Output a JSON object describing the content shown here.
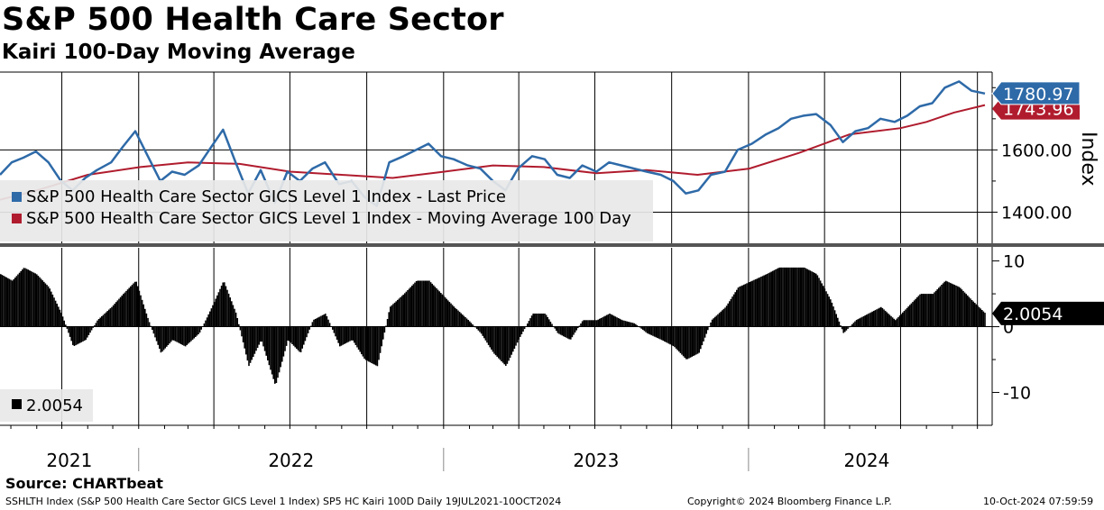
{
  "title": "S&P 500 Health Care Sector",
  "subtitle": "Kairi 100-Day Moving Average",
  "source": "Source: CHARTbeat",
  "footer": {
    "left": "SSHLTH Index (S&P 500 Health Care Sector GICS Level 1 Index) SP5 HC Kairi 100D  Daily 19JUL2021-10OCT2024",
    "center": "Copyright© 2024 Bloomberg Finance L.P.",
    "right": "10-Oct-2024 07:59:59"
  },
  "colors": {
    "price": "#2e6aa8",
    "ma": "#b01c2e",
    "kairi": "#000000",
    "grid": "#000000"
  },
  "chart_data": [
    {
      "type": "line",
      "y_axis_title": "Index",
      "y_ticks": [
        1400,
        1600
      ],
      "y_tick_labels": [
        "1400.00",
        "1600.00"
      ],
      "ylim": [
        1300,
        1850
      ],
      "x_labels": [
        "2021",
        "2022",
        "2023",
        "2024"
      ],
      "x_range": [
        "2021-07-19",
        "2024-10-10"
      ],
      "legend_position": "bottom-left",
      "last_price_label": "1780.97",
      "ma_label_partial": "1743.96",
      "series": [
        {
          "name": "S&P 500 Health Care Sector GICS Level 1 Index - Last Price",
          "color": "#2e6aa8",
          "points": [
            [
              "2021-07-19",
              1520
            ],
            [
              "2021-08-02",
              1560
            ],
            [
              "2021-08-16",
              1575
            ],
            [
              "2021-08-31",
              1595
            ],
            [
              "2021-09-15",
              1560
            ],
            [
              "2021-09-30",
              1500
            ],
            [
              "2021-10-14",
              1470
            ],
            [
              "2021-10-29",
              1510
            ],
            [
              "2021-11-12",
              1535
            ],
            [
              "2021-11-29",
              1560
            ],
            [
              "2021-12-13",
              1610
            ],
            [
              "2021-12-28",
              1660
            ],
            [
              "2022-01-12",
              1580
            ],
            [
              "2022-01-27",
              1500
            ],
            [
              "2022-02-10",
              1530
            ],
            [
              "2022-02-25",
              1520
            ],
            [
              "2022-03-14",
              1550
            ],
            [
              "2022-03-29",
              1610
            ],
            [
              "2022-04-12",
              1665
            ],
            [
              "2022-04-27",
              1560
            ],
            [
              "2022-05-12",
              1460
            ],
            [
              "2022-05-27",
              1535
            ],
            [
              "2022-06-13",
              1430
            ],
            [
              "2022-06-28",
              1530
            ],
            [
              "2022-07-13",
              1500
            ],
            [
              "2022-07-28",
              1540
            ],
            [
              "2022-08-12",
              1560
            ],
            [
              "2022-08-29",
              1490
            ],
            [
              "2022-09-13",
              1500
            ],
            [
              "2022-09-28",
              1450
            ],
            [
              "2022-10-13",
              1420
            ],
            [
              "2022-10-28",
              1560
            ],
            [
              "2022-11-14",
              1580
            ],
            [
              "2022-11-29",
              1600
            ],
            [
              "2022-12-14",
              1620
            ],
            [
              "2022-12-29",
              1580
            ],
            [
              "2023-01-13",
              1570
            ],
            [
              "2023-01-30",
              1550
            ],
            [
              "2023-02-14",
              1540
            ],
            [
              "2023-03-01",
              1500
            ],
            [
              "2023-03-16",
              1470
            ],
            [
              "2023-03-31",
              1540
            ],
            [
              "2023-04-17",
              1580
            ],
            [
              "2023-05-02",
              1570
            ],
            [
              "2023-05-17",
              1520
            ],
            [
              "2023-06-01",
              1510
            ],
            [
              "2023-06-16",
              1550
            ],
            [
              "2023-07-03",
              1530
            ],
            [
              "2023-07-18",
              1560
            ],
            [
              "2023-08-02",
              1550
            ],
            [
              "2023-08-17",
              1540
            ],
            [
              "2023-09-01",
              1530
            ],
            [
              "2023-09-18",
              1520
            ],
            [
              "2023-10-03",
              1500
            ],
            [
              "2023-10-18",
              1460
            ],
            [
              "2023-11-02",
              1470
            ],
            [
              "2023-11-17",
              1520
            ],
            [
              "2023-12-04",
              1530
            ],
            [
              "2023-12-19",
              1600
            ],
            [
              "2024-01-05",
              1620
            ],
            [
              "2024-01-22",
              1650
            ],
            [
              "2024-02-06",
              1670
            ],
            [
              "2024-02-21",
              1700
            ],
            [
              "2024-03-07",
              1710
            ],
            [
              "2024-03-22",
              1715
            ],
            [
              "2024-04-08",
              1680
            ],
            [
              "2024-04-23",
              1625
            ],
            [
              "2024-05-08",
              1660
            ],
            [
              "2024-05-23",
              1670
            ],
            [
              "2024-06-07",
              1700
            ],
            [
              "2024-06-24",
              1690
            ],
            [
              "2024-07-09",
              1710
            ],
            [
              "2024-07-24",
              1740
            ],
            [
              "2024-08-08",
              1750
            ],
            [
              "2024-08-23",
              1800
            ],
            [
              "2024-09-09",
              1820
            ],
            [
              "2024-09-24",
              1790
            ],
            [
              "2024-10-10",
              1781
            ]
          ]
        },
        {
          "name": "S&P 500 Health Care Sector GICS Level 1 Index - Moving Average 100 Day",
          "color": "#b01c2e",
          "points": [
            [
              "2021-07-19",
              1440
            ],
            [
              "2021-09-01",
              1470
            ],
            [
              "2021-11-01",
              1520
            ],
            [
              "2022-01-03",
              1545
            ],
            [
              "2022-03-01",
              1560
            ],
            [
              "2022-05-02",
              1555
            ],
            [
              "2022-07-01",
              1530
            ],
            [
              "2022-09-01",
              1520
            ],
            [
              "2022-11-01",
              1510
            ],
            [
              "2023-01-02",
              1530
            ],
            [
              "2023-03-01",
              1550
            ],
            [
              "2023-05-01",
              1545
            ],
            [
              "2023-07-03",
              1525
            ],
            [
              "2023-09-01",
              1535
            ],
            [
              "2023-11-01",
              1520
            ],
            [
              "2024-01-02",
              1540
            ],
            [
              "2024-03-01",
              1590
            ],
            [
              "2024-05-01",
              1650
            ],
            [
              "2024-07-01",
              1670
            ],
            [
              "2024-08-01",
              1690
            ],
            [
              "2024-09-03",
              1720
            ],
            [
              "2024-10-10",
              1744
            ]
          ]
        }
      ]
    },
    {
      "type": "bar",
      "ylim": [
        -15,
        12
      ],
      "y_ticks": [
        10,
        0,
        -10
      ],
      "y_tick_labels": [
        "10",
        "0",
        "-10"
      ],
      "legend_position": "bottom-left",
      "last_value_label": "2.0054",
      "series": [
        {
          "name": "2.0054",
          "color": "#000000",
          "points": [
            [
              "2021-07-19",
              8
            ],
            [
              "2021-08-02",
              7
            ],
            [
              "2021-08-16",
              9
            ],
            [
              "2021-08-31",
              8
            ],
            [
              "2021-09-15",
              6
            ],
            [
              "2021-09-30",
              2
            ],
            [
              "2021-10-14",
              -3
            ],
            [
              "2021-10-29",
              -2
            ],
            [
              "2021-11-12",
              1
            ],
            [
              "2021-11-29",
              3
            ],
            [
              "2021-12-13",
              5
            ],
            [
              "2021-12-28",
              7
            ],
            [
              "2022-01-12",
              1
            ],
            [
              "2022-01-27",
              -4
            ],
            [
              "2022-02-10",
              -2
            ],
            [
              "2022-02-25",
              -3
            ],
            [
              "2022-03-14",
              -1
            ],
            [
              "2022-03-29",
              3
            ],
            [
              "2022-04-12",
              7
            ],
            [
              "2022-04-27",
              2
            ],
            [
              "2022-05-12",
              -6
            ],
            [
              "2022-05-27",
              -2
            ],
            [
              "2022-06-13",
              -9
            ],
            [
              "2022-06-28",
              -2
            ],
            [
              "2022-07-13",
              -4
            ],
            [
              "2022-07-28",
              1
            ],
            [
              "2022-08-12",
              2
            ],
            [
              "2022-08-29",
              -3
            ],
            [
              "2022-09-13",
              -2
            ],
            [
              "2022-09-28",
              -5
            ],
            [
              "2022-10-13",
              -6
            ],
            [
              "2022-10-28",
              3
            ],
            [
              "2022-11-14",
              5
            ],
            [
              "2022-11-29",
              7
            ],
            [
              "2022-12-14",
              7
            ],
            [
              "2022-12-29",
              5
            ],
            [
              "2023-01-13",
              3
            ],
            [
              "2023-01-30",
              1
            ],
            [
              "2023-02-14",
              -1
            ],
            [
              "2023-03-01",
              -4
            ],
            [
              "2023-03-16",
              -6
            ],
            [
              "2023-03-31",
              -2
            ],
            [
              "2023-04-17",
              2
            ],
            [
              "2023-05-02",
              2
            ],
            [
              "2023-05-17",
              -1
            ],
            [
              "2023-06-01",
              -2
            ],
            [
              "2023-06-16",
              1
            ],
            [
              "2023-07-03",
              1
            ],
            [
              "2023-07-18",
              2
            ],
            [
              "2023-08-02",
              1
            ],
            [
              "2023-08-17",
              0.5
            ],
            [
              "2023-09-01",
              -1
            ],
            [
              "2023-09-18",
              -2
            ],
            [
              "2023-10-03",
              -3
            ],
            [
              "2023-10-18",
              -5
            ],
            [
              "2023-11-02",
              -4
            ],
            [
              "2023-11-17",
              1
            ],
            [
              "2023-12-04",
              3
            ],
            [
              "2023-12-19",
              6
            ],
            [
              "2024-01-05",
              7
            ],
            [
              "2024-01-22",
              8
            ],
            [
              "2024-02-06",
              9
            ],
            [
              "2024-02-21",
              9
            ],
            [
              "2024-03-07",
              9
            ],
            [
              "2024-03-22",
              8
            ],
            [
              "2024-04-08",
              4
            ],
            [
              "2024-04-23",
              -1
            ],
            [
              "2024-05-08",
              1
            ],
            [
              "2024-05-23",
              2
            ],
            [
              "2024-06-07",
              3
            ],
            [
              "2024-06-24",
              1
            ],
            [
              "2024-07-09",
              3
            ],
            [
              "2024-07-24",
              5
            ],
            [
              "2024-08-08",
              5
            ],
            [
              "2024-08-23",
              7
            ],
            [
              "2024-09-09",
              6
            ],
            [
              "2024-09-24",
              4
            ],
            [
              "2024-10-10",
              2.0054
            ]
          ]
        }
      ]
    }
  ]
}
